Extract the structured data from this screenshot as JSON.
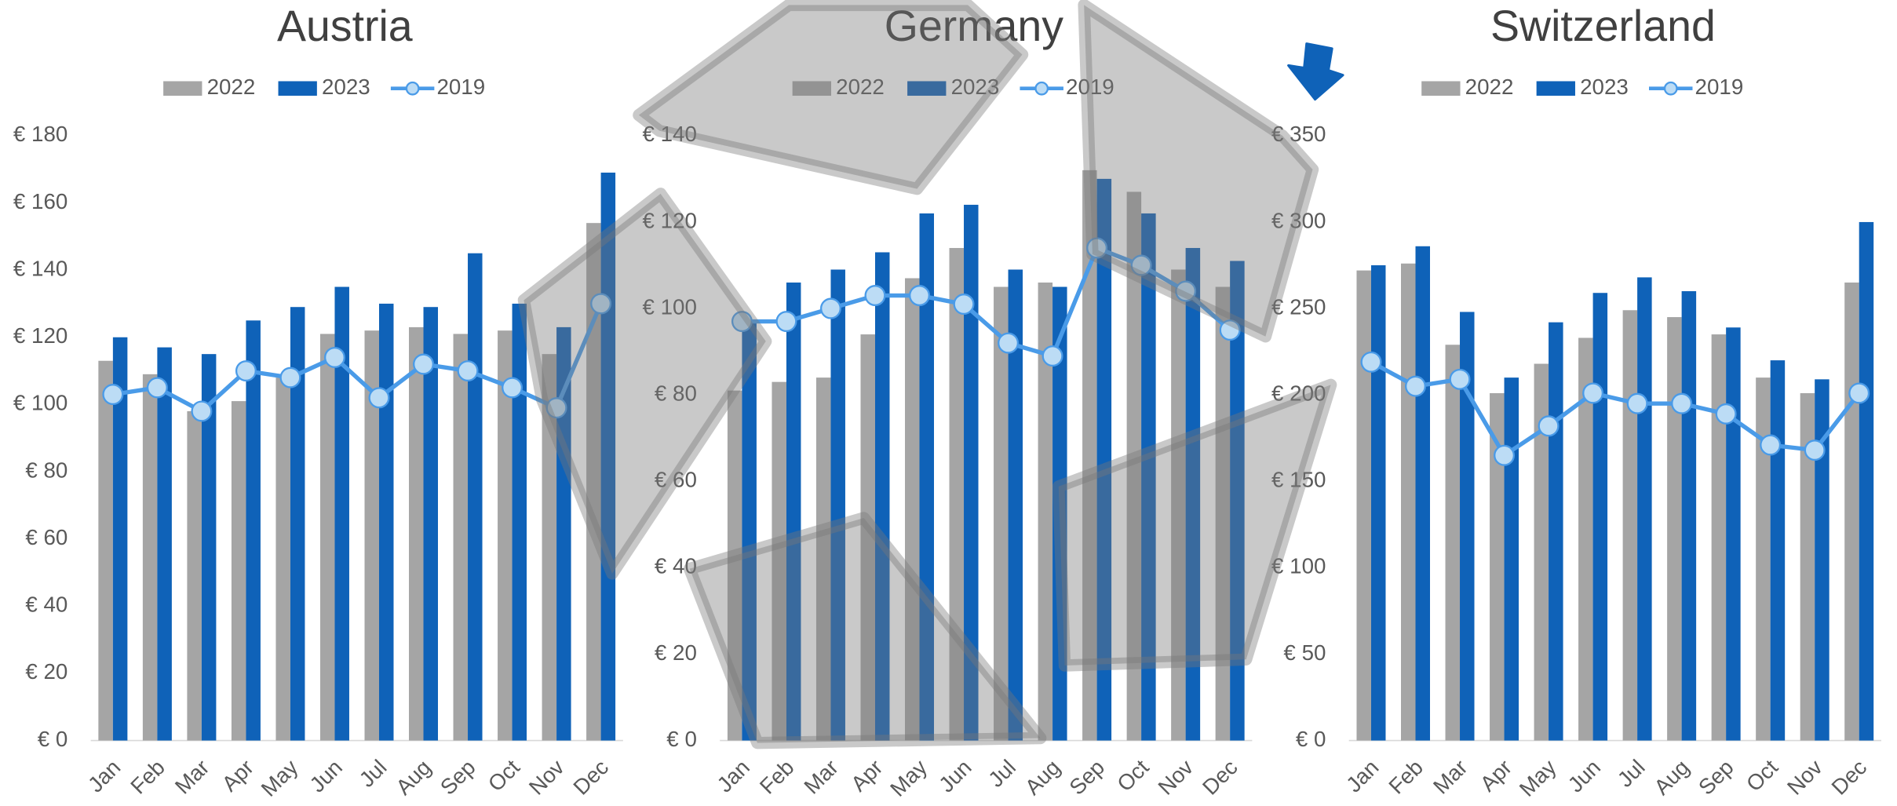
{
  "chart_data": [
    {
      "type": "bar",
      "title": "Austria",
      "categories": [
        "Jan",
        "Feb",
        "Mar",
        "Apr",
        "May",
        "Jun",
        "Jul",
        "Aug",
        "Sep",
        "Oct",
        "Nov",
        "Dec"
      ],
      "series": [
        {
          "name": "2022",
          "type": "bar",
          "color": "#a5a5a5",
          "values": [
            113,
            109,
            98,
            101,
            108,
            121,
            122,
            123,
            121,
            122,
            115,
            154
          ]
        },
        {
          "name": "2023",
          "type": "bar",
          "color": "#0f62b8",
          "values": [
            120,
            117,
            115,
            125,
            129,
            135,
            130,
            129,
            145,
            130,
            123,
            169
          ]
        },
        {
          "name": "2019",
          "type": "line",
          "color": "#4a9be8",
          "values": [
            103,
            105,
            98,
            110,
            108,
            114,
            102,
            112,
            110,
            105,
            99,
            130
          ]
        }
      ],
      "ylim": [
        0,
        180
      ],
      "yticks": [
        {
          "value": 0,
          "label": "€ 0"
        },
        {
          "value": 20,
          "label": "€ 20"
        },
        {
          "value": 40,
          "label": "€ 40"
        },
        {
          "value": 60,
          "label": "€ 60"
        },
        {
          "value": 80,
          "label": "€ 80"
        },
        {
          "value": 100,
          "label": "€ 100"
        },
        {
          "value": 120,
          "label": "€ 120"
        },
        {
          "value": 140,
          "label": "€ 140"
        },
        {
          "value": 160,
          "label": "€ 160"
        },
        {
          "value": 180,
          "label": "€ 180"
        }
      ],
      "grid": false
    },
    {
      "type": "bar",
      "title": "Germany",
      "categories": [
        "Jan",
        "Feb",
        "Mar",
        "Apr",
        "May",
        "Jun",
        "Jul",
        "Aug",
        "Sep",
        "Oct",
        "Nov",
        "Dec"
      ],
      "series": [
        {
          "name": "2022",
          "type": "bar",
          "color": "#a5a5a5",
          "values": [
            81,
            83,
            84,
            94,
            107,
            114,
            105,
            106,
            132,
            127,
            109,
            105
          ]
        },
        {
          "name": "2023",
          "type": "bar",
          "color": "#0f62b8",
          "values": [
            97,
            106,
            109,
            113,
            122,
            124,
            109,
            105,
            130,
            122,
            114,
            111
          ]
        },
        {
          "name": "2019",
          "type": "line",
          "color": "#4a9be8",
          "values": [
            97,
            97,
            100,
            103,
            103,
            101,
            92,
            89,
            114,
            110,
            104,
            95
          ]
        }
      ],
      "ylim": [
        0,
        140
      ],
      "yticks": [
        {
          "value": 0,
          "label": "€ 0"
        },
        {
          "value": 20,
          "label": "€ 20"
        },
        {
          "value": 40,
          "label": "€ 40"
        },
        {
          "value": 60,
          "label": "€ 60"
        },
        {
          "value": 80,
          "label": "€ 80"
        },
        {
          "value": 100,
          "label": "€ 100"
        },
        {
          "value": 120,
          "label": "€ 120"
        },
        {
          "value": 140,
          "label": "€ 140"
        }
      ],
      "grid": false
    },
    {
      "type": "bar",
      "title": "Switzerland",
      "categories": [
        "Jan",
        "Feb",
        "Mar",
        "Apr",
        "May",
        "Jun",
        "Jul",
        "Aug",
        "Sep",
        "Oct",
        "Nov",
        "Dec"
      ],
      "series": [
        {
          "name": "2022",
          "type": "bar",
          "color": "#a5a5a5",
          "values": [
            272,
            276,
            229,
            201,
            218,
            233,
            249,
            245,
            235,
            210,
            201,
            265
          ]
        },
        {
          "name": "2023",
          "type": "bar",
          "color": "#0f62b8",
          "values": [
            275,
            286,
            248,
            210,
            242,
            259,
            268,
            260,
            239,
            220,
            209,
            300
          ]
        },
        {
          "name": "2019",
          "type": "line",
          "color": "#4a9be8",
          "values": [
            219,
            205,
            209,
            165,
            182,
            201,
            195,
            195,
            189,
            171,
            168,
            201
          ]
        }
      ],
      "ylim": [
        0,
        350
      ],
      "yticks": [
        {
          "value": 0,
          "label": "€ 0"
        },
        {
          "value": 50,
          "label": "€ 50"
        },
        {
          "value": 100,
          "label": "€ 100"
        },
        {
          "value": 150,
          "label": "€ 150"
        },
        {
          "value": 200,
          "label": "€ 200"
        },
        {
          "value": 250,
          "label": "€ 250"
        },
        {
          "value": 300,
          "label": "€ 300"
        },
        {
          "value": 350,
          "label": "€ 350"
        }
      ],
      "grid": false
    }
  ]
}
